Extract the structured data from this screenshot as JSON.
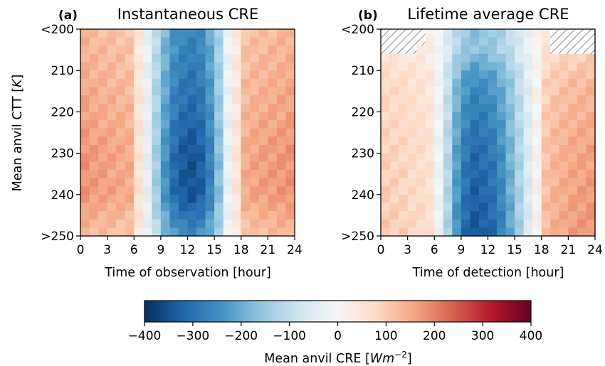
{
  "chart_data": [
    {
      "type": "heatmap",
      "panel_label": "(a)",
      "title": "Instantaneous CRE",
      "xlabel": "Time of observation [hour]",
      "ylabel_main": "Mean anvil CTT [",
      "ylabel_unit": "K",
      "ylabel_close": "]",
      "x_ticks": [
        "0",
        "3",
        "6",
        "9",
        "12",
        "15",
        "18",
        "21",
        "24"
      ],
      "y_ticks": [
        "<200",
        "210",
        "220",
        "230",
        "240",
        ">250"
      ],
      "xlim": [
        0,
        24
      ],
      "ylim": [
        200,
        250
      ],
      "x_bin_hours": 1,
      "y_bin_K": 2,
      "value_units": "W m-2",
      "hour_profile_cre": [
        180,
        170,
        165,
        160,
        155,
        150,
        60,
        -40,
        -140,
        -240,
        -310,
        -340,
        -350,
        -330,
        -270,
        -170,
        -30,
        50,
        150,
        160,
        165,
        170,
        175,
        180
      ],
      "ctt_profile": [
        {
          "ctt": 200,
          "factor": 0.75
        },
        {
          "ctt": 210,
          "factor": 0.82
        },
        {
          "ctt": 220,
          "factor": 0.9
        },
        {
          "ctt": 230,
          "factor": 1.0
        },
        {
          "ctt": 240,
          "factor": 1.0
        },
        {
          "ctt": 250,
          "factor": 0.72
        }
      ],
      "colormap": "RdBu_r"
    },
    {
      "type": "heatmap",
      "panel_label": "(b)",
      "title": "Lifetime average CRE",
      "xlabel": "Time of detection [hour]",
      "x_ticks": [
        "0",
        "3",
        "6",
        "9",
        "12",
        "15",
        "18",
        "21",
        "24"
      ],
      "y_ticks": [
        "<200",
        "210",
        "220",
        "230",
        "240",
        ">250"
      ],
      "xlim": [
        0,
        24
      ],
      "ylim": [
        200,
        250
      ],
      "x_bin_hours": 1,
      "y_bin_K": 2,
      "value_units": "W m-2",
      "hour_profile_cre": [
        100,
        95,
        90,
        80,
        75,
        60,
        -20,
        -120,
        -230,
        -300,
        -330,
        -320,
        -300,
        -260,
        -200,
        -130,
        -60,
        20,
        120,
        140,
        150,
        160,
        165,
        170
      ],
      "ctt_profile": [
        {
          "ctt": 205,
          "factor": 0.5
        },
        {
          "ctt": 212,
          "factor": 0.75
        },
        {
          "ctt": 220,
          "factor": 0.85
        },
        {
          "ctt": 230,
          "factor": 0.95
        },
        {
          "ctt": 240,
          "factor": 1.0
        },
        {
          "ctt": 250,
          "factor": 1.05
        }
      ],
      "no_data_hatched_region": "low CTT (<206 K) at most hours",
      "colormap": "RdBu_r"
    }
  ],
  "colorbar": {
    "label_main": "Mean anvil CRE [",
    "label_unit": "Wm",
    "label_exp": "−2",
    "label_close": "]",
    "range": [
      -400,
      400
    ],
    "ticks": [
      "−400",
      "−300",
      "−200",
      "−100",
      "0",
      "100",
      "200",
      "300",
      "400"
    ],
    "orientation": "horizontal",
    "placement": "bottom-center"
  },
  "colors": {
    "cmap_stops": [
      "#053061",
      "#2166ac",
      "#4393c3",
      "#92c5de",
      "#d1e5f0",
      "#f7f7f7",
      "#fddbc7",
      "#f4a582",
      "#d6604d",
      "#b2182b",
      "#67001f"
    ],
    "hatch": "#6e6e6e"
  }
}
